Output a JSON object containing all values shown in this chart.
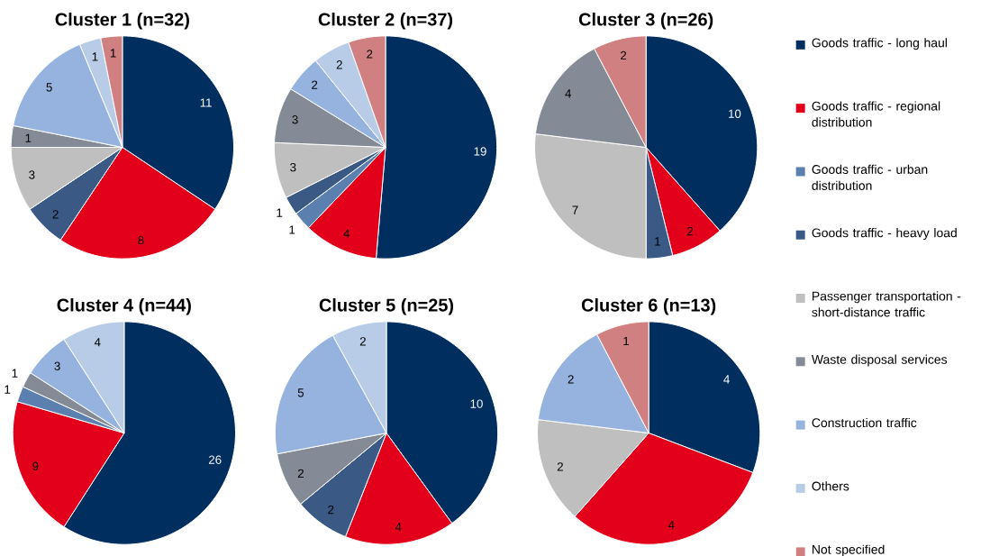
{
  "chart_data": [
    {
      "type": "pie",
      "title": "Cluster 1 (n=32)",
      "legend": "right",
      "data_labels": true,
      "categories": [
        "Goods traffic - long haul",
        "Goods traffic - regional distribution",
        "Goods traffic - urban distribution",
        "Goods traffic - heavy load",
        "Passenger transportation - short-distance traffic",
        "Waste disposal services",
        "Construction traffic",
        "Others",
        "Not specified"
      ],
      "values": [
        11,
        8,
        null,
        2,
        3,
        1,
        5,
        1,
        1
      ],
      "colors": [
        "#002f5f",
        "#e2001a",
        "#5b7fae",
        "#3a5a85",
        "#bfbfbf",
        "#858b96",
        "#95b3de",
        "#b8cce8",
        "#d08080"
      ]
    },
    {
      "type": "pie",
      "title": "Cluster 2 (n=37)",
      "data_labels": true,
      "categories": [
        null,
        null,
        null,
        null,
        null,
        null,
        null,
        null,
        null
      ],
      "values": [
        19,
        4,
        1,
        1,
        3,
        3,
        2,
        2,
        2
      ],
      "colors": [
        "#002f5f",
        "#e2001a",
        "#5b7fae",
        "#3a5a85",
        "#bfbfbf",
        "#858b96",
        "#95b3de",
        "#b8cce8",
        "#d08080"
      ]
    },
    {
      "type": "pie",
      "title": "Cluster 3 (n=26)",
      "data_labels": true,
      "categories": [
        null,
        null,
        null,
        null,
        null,
        null,
        null,
        null,
        null
      ],
      "values": [
        10,
        2,
        null,
        1,
        7,
        4,
        null,
        null,
        2
      ],
      "colors": [
        "#002f5f",
        "#e2001a",
        "#5b7fae",
        "#3a5a85",
        "#bfbfbf",
        "#858b96",
        "#95b3de",
        "#b8cce8",
        "#d08080"
      ]
    },
    {
      "type": "pie",
      "title": "Cluster 4 (n=44)",
      "data_labels": true,
      "categories": [
        null,
        null,
        null,
        null,
        null,
        null,
        null,
        null,
        null
      ],
      "values": [
        26,
        9,
        1,
        null,
        null,
        1,
        3,
        4,
        null
      ],
      "colors": [
        "#002f5f",
        "#e2001a",
        "#5b7fae",
        "#3a5a85",
        "#bfbfbf",
        "#858b96",
        "#95b3de",
        "#b8cce8",
        "#d08080"
      ]
    },
    {
      "type": "pie",
      "title": "Cluster 5 (n=25)",
      "data_labels": true,
      "categories": [
        null,
        null,
        null,
        null,
        null,
        null,
        null,
        null,
        null
      ],
      "values": [
        10,
        4,
        null,
        2,
        null,
        2,
        5,
        2,
        null
      ],
      "colors": [
        "#002f5f",
        "#e2001a",
        "#5b7fae",
        "#3a5a85",
        "#bfbfbf",
        "#858b96",
        "#95b3de",
        "#b8cce8",
        "#d08080"
      ]
    },
    {
      "type": "pie",
      "title": "Cluster 6 (n=13)",
      "data_labels": true,
      "categories": [
        null,
        null,
        null,
        null,
        null,
        null,
        null,
        null,
        null
      ],
      "values": [
        4,
        4,
        null,
        null,
        2,
        null,
        2,
        null,
        1
      ],
      "colors": [
        "#002f5f",
        "#e2001a",
        "#5b7fae",
        "#3a5a85",
        "#bfbfbf",
        "#858b96",
        "#95b3de",
        "#b8cce8",
        "#d08080"
      ]
    }
  ]
}
